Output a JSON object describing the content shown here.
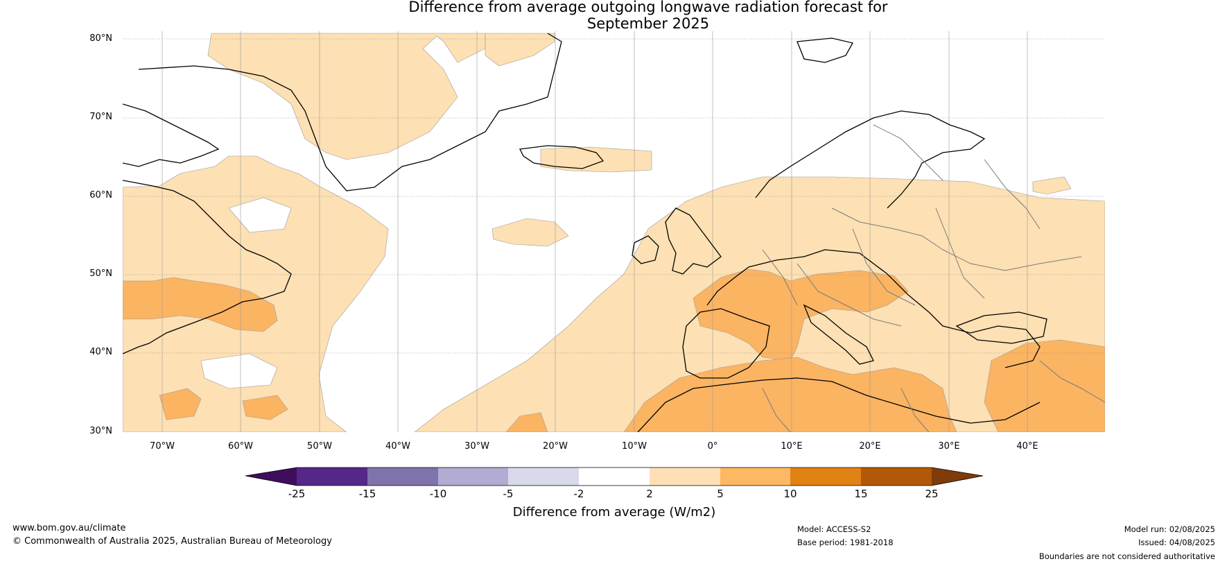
{
  "title": {
    "line1": "Difference from average outgoing longwave radiation forecast for",
    "line2": "September 2025"
  },
  "map": {
    "lat_labels": [
      "80°N",
      "70°N",
      "60°N",
      "50°N",
      "40°N",
      "30°N"
    ],
    "lon_labels": [
      "70°W",
      "60°W",
      "50°W",
      "40°W",
      "30°W",
      "20°W",
      "10°W",
      "0°",
      "10°E",
      "20°E",
      "30°E",
      "40°E"
    ],
    "colors": {
      "light_anomaly": "#fde0b3",
      "medium_anomaly": "#fbb462",
      "coastline": "#000000",
      "borders": "#7a7a7a",
      "gridline": "#888888"
    }
  },
  "colorbar": {
    "title": "Difference from average (W/m2)",
    "ticks": [
      "-25",
      "-15",
      "-10",
      "-5",
      "-2",
      "2",
      "5",
      "10",
      "15",
      "25"
    ],
    "colors": [
      "#3f0d5e",
      "#542788",
      "#8073ac",
      "#b2abd2",
      "#d8daeb",
      "#ffffff",
      "#fee0b6",
      "#fdb863",
      "#e08214",
      "#b35806",
      "#7f3b08"
    ]
  },
  "footer": {
    "website": "www.bom.gov.au/climate",
    "copyright": "© Commonwealth of Australia 2025, Australian Bureau of Meteorology",
    "model": "Model: ACCESS-S2",
    "base_period": "Base period: 1981-2018",
    "model_run": "Model run: 02/08/2025",
    "issued": "Issued: 04/08/2025",
    "disclaimer": "Boundaries are not considered authoritative"
  }
}
